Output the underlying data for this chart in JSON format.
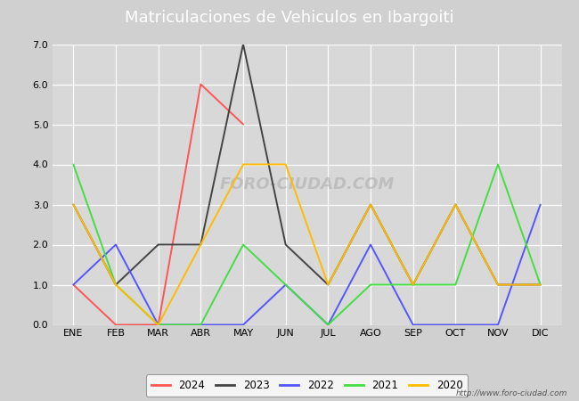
{
  "title": "Matriculaciones de Vehiculos en Ibargoiti",
  "months": [
    "ENE",
    "FEB",
    "MAR",
    "ABR",
    "MAY",
    "JUN",
    "JUL",
    "AGO",
    "SEP",
    "OCT",
    "NOV",
    "DIC"
  ],
  "series": {
    "2024": [
      1,
      0,
      0,
      6,
      5,
      null,
      null,
      null,
      null,
      null,
      null,
      null
    ],
    "2023": [
      3,
      1,
      2,
      2,
      7,
      2,
      1,
      3,
      1,
      3,
      1,
      1
    ],
    "2022": [
      1,
      2,
      0,
      0,
      0,
      1,
      0,
      2,
      0,
      0,
      0,
      3
    ],
    "2021": [
      4,
      1,
      0,
      0,
      2,
      1,
      0,
      1,
      1,
      1,
      4,
      1
    ],
    "2020": [
      3,
      1,
      0,
      2,
      4,
      4,
      1,
      3,
      1,
      3,
      1,
      1
    ]
  },
  "colors": {
    "2024": "#ff5555",
    "2023": "#444444",
    "2022": "#5555ff",
    "2021": "#44dd44",
    "2020": "#ffbb00"
  },
  "ylim": [
    0.0,
    7.0
  ],
  "yticks": [
    0.0,
    1.0,
    2.0,
    3.0,
    4.0,
    5.0,
    6.0,
    7.0
  ],
  "title_fontsize": 13,
  "fig_bg_color": "#d0d0d0",
  "plot_bg_color": "#d8d8d8",
  "header_bg_color": "#4a86c8",
  "watermark_center": "FORO-CIUDAD.COM",
  "watermark_bottom": "http://www.foro-ciudad.com",
  "legend_border_color": "#888888"
}
